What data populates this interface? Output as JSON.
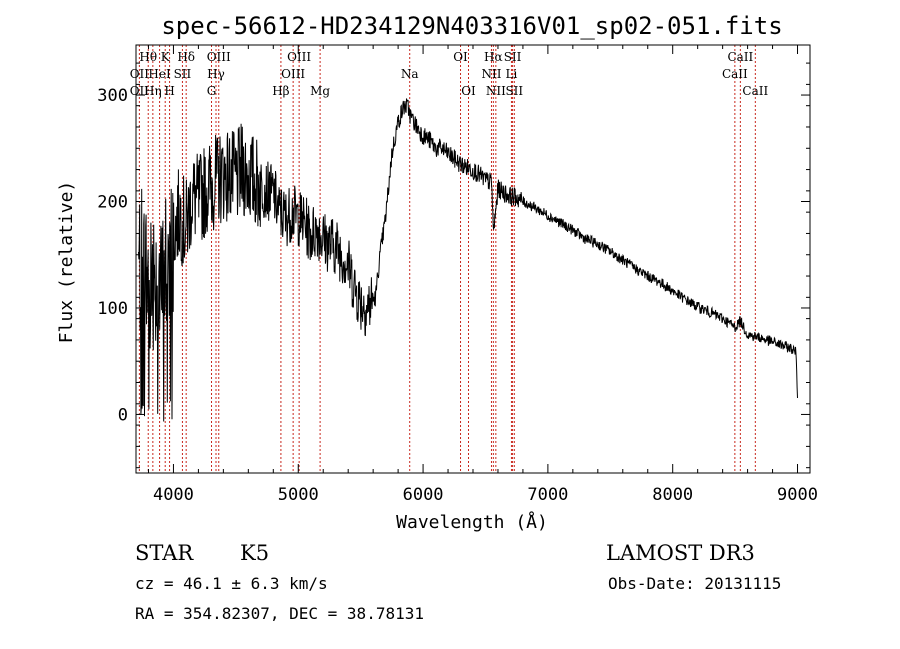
{
  "chart_data": {
    "type": "line",
    "title": "spec-56612-HD234129N403316V01_sp02-051.fits",
    "xlabel": "Wavelength (Å)",
    "ylabel": "Flux (relative)",
    "xlim": [
      3700,
      9100
    ],
    "ylim": [
      -55,
      347
    ],
    "xticks": [
      4000,
      5000,
      6000,
      7000,
      8000,
      9000
    ],
    "yticks": [
      0,
      100,
      200,
      300
    ],
    "grid": false,
    "series": [
      {
        "name": "flux",
        "x": [
          3700,
          3750,
          3800,
          3850,
          3900,
          3950,
          4000,
          4050,
          4100,
          4150,
          4200,
          4250,
          4300,
          4350,
          4400,
          4450,
          4500,
          4550,
          4600,
          4650,
          4700,
          4750,
          4800,
          4850,
          4900,
          4950,
          5000,
          5050,
          5100,
          5150,
          5200,
          5250,
          5300,
          5350,
          5400,
          5450,
          5500,
          5550,
          5580,
          5620,
          5650,
          5700,
          5750,
          5800,
          5850,
          5880,
          5900,
          5950,
          6000,
          6050,
          6100,
          6150,
          6200,
          6250,
          6300,
          6350,
          6400,
          6450,
          6500,
          6550,
          6563,
          6600,
          6650,
          6700,
          6750,
          6800,
          6900,
          7000,
          7100,
          7200,
          7300,
          7400,
          7500,
          7600,
          7700,
          7800,
          7900,
          8000,
          8100,
          8200,
          8300,
          8400,
          8500,
          8542,
          8600,
          8700,
          8800,
          8900,
          8950,
          8990,
          9000
        ],
        "y": [
          130,
          150,
          120,
          140,
          110,
          150,
          170,
          190,
          175,
          205,
          200,
          210,
          215,
          220,
          225,
          225,
          220,
          230,
          225,
          218,
          215,
          210,
          208,
          190,
          185,
          190,
          185,
          180,
          168,
          175,
          165,
          160,
          158,
          150,
          140,
          120,
          105,
          100,
          105,
          110,
          145,
          185,
          245,
          275,
          290,
          288,
          280,
          270,
          262,
          258,
          250,
          250,
          245,
          240,
          235,
          232,
          230,
          225,
          220,
          218,
          170,
          212,
          208,
          205,
          204,
          200,
          194,
          187,
          180,
          173,
          165,
          160,
          153,
          145,
          137,
          130,
          124,
          116,
          108,
          101,
          96,
          90,
          82,
          88,
          75,
          72,
          68,
          64,
          62,
          58,
          12
        ]
      }
    ],
    "spectral_lines": [
      {
        "label": "Hθ",
        "row": 1,
        "wavelength": 3798
      },
      {
        "label": "K",
        "row": 1,
        "wavelength": 3934
      },
      {
        "label": "Hδ",
        "row": 1,
        "wavelength": 4102
      },
      {
        "label": "OIII",
        "row": 1,
        "wavelength": 4363
      },
      {
        "label": "OIII",
        "row": 1,
        "wavelength": 5007
      },
      {
        "label": "OI",
        "row": 1,
        "wavelength": 6300
      },
      {
        "label": "Hα",
        "row": 1,
        "wavelength": 6563
      },
      {
        "label": "SII",
        "row": 1,
        "wavelength": 6717
      },
      {
        "label": "CaII",
        "row": 1,
        "wavelength": 8542
      },
      {
        "label": "OII",
        "row": 2,
        "wavelength": 3727
      },
      {
        "label": "HeI",
        "row": 2,
        "wavelength": 3889
      },
      {
        "label": "SII",
        "row": 2,
        "wavelength": 4072
      },
      {
        "label": "Hγ",
        "row": 2,
        "wavelength": 4341
      },
      {
        "label": "OIII",
        "row": 2,
        "wavelength": 4959
      },
      {
        "label": "Na",
        "row": 2,
        "wavelength": 5893
      },
      {
        "label": "NII",
        "row": 2,
        "wavelength": 6548
      },
      {
        "label": "Li",
        "row": 2,
        "wavelength": 6708
      },
      {
        "label": "CaII",
        "row": 2,
        "wavelength": 8498
      },
      {
        "label": "OII",
        "row": 3,
        "wavelength": 3727
      },
      {
        "label": "Hη",
        "row": 3,
        "wavelength": 3835
      },
      {
        "label": "H",
        "row": 3,
        "wavelength": 3969
      },
      {
        "label": "G",
        "row": 3,
        "wavelength": 4305
      },
      {
        "label": "Hβ",
        "row": 3,
        "wavelength": 4861
      },
      {
        "label": "Mg",
        "row": 3,
        "wavelength": 5175
      },
      {
        "label": "OI",
        "row": 3,
        "wavelength": 6364
      },
      {
        "label": "NII",
        "row": 3,
        "wavelength": 6583
      },
      {
        "label": "SII",
        "row": 3,
        "wavelength": 6731
      },
      {
        "label": "CaII",
        "row": 3,
        "wavelength": 8662
      }
    ]
  },
  "info": {
    "class": "STAR",
    "subclass": "K5",
    "survey": "LAMOST DR3",
    "cz": "cz = 46.1 ± 6.3 km/s",
    "obs_date": "Obs-Date: 20131115",
    "coords": "RA = 354.82307, DEC =  38.78131"
  },
  "colors": {
    "spectrum": "#000000",
    "line_markers": "#c8281e",
    "axes": "#000000"
  }
}
